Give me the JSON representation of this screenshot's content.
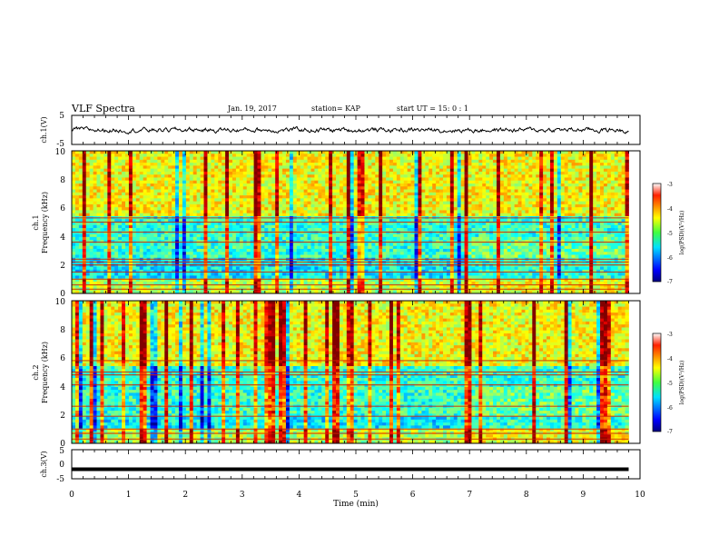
{
  "header": {
    "title": "VLF Spectra",
    "date": "Jan. 19, 2017",
    "station": "station= KAP",
    "start": "start  UT =   15: 0  : 1"
  },
  "chart_data": [
    {
      "type": "line",
      "name": "ch1-waveform",
      "ylabel": "ch.1(V)",
      "ylim": [
        -5,
        5
      ],
      "yticks": [
        "5",
        "-5"
      ],
      "xlim": [
        0,
        10
      ],
      "description_values": "noisy signal oscillating roughly between -1.3 and +1.3 V over 0-9.8 min"
    },
    {
      "type": "heatmap",
      "name": "ch1-spectrogram",
      "ylabel": "ch.1\nFrequency  (kHz)",
      "ylim": [
        0,
        10
      ],
      "yticks": [
        "0",
        "2",
        "4",
        "6",
        "8",
        "10"
      ],
      "xlim": [
        0,
        10
      ],
      "data_xmax": 9.8,
      "colorbar": {
        "label": "log(PSD)(V²/Hz)",
        "range": [
          -7,
          -3
        ],
        "ticks": [
          "-3",
          "-4",
          "-5",
          "-6",
          "-7"
        ]
      },
      "bands_khz": [
        0.3,
        0.6,
        1.0,
        1.5,
        2.0,
        2.2,
        2.4,
        3.6,
        4.3,
        5.0,
        5.3
      ]
    },
    {
      "type": "heatmap",
      "name": "ch2-spectrogram",
      "ylabel": "ch.2\nFrequency  (kHz)",
      "ylim": [
        0,
        10
      ],
      "yticks": [
        "0",
        "2",
        "4",
        "6",
        "8",
        "10"
      ],
      "xlim": [
        0,
        10
      ],
      "data_xmax": 9.8,
      "colorbar": {
        "label": "log(PSD)(V²/Hz)",
        "range": [
          -7,
          -3
        ],
        "ticks": [
          "-3",
          "-4",
          "-5",
          "-6",
          "-7"
        ]
      },
      "bands_khz": [
        0.3,
        0.7,
        1.0,
        1.9,
        2.6,
        4.1,
        4.8,
        5.0,
        5.8
      ]
    },
    {
      "type": "line",
      "name": "ch3-waveform",
      "ylabel": "ch.3(V)",
      "ylim": [
        -5,
        5
      ],
      "yticks": [
        "5",
        "0",
        "-5"
      ],
      "x": [
        0,
        9.8
      ],
      "y": [
        -1.7,
        -1.7
      ],
      "xlim": [
        0,
        10
      ],
      "xlabel": "Time  (min)",
      "xticks": [
        "0",
        "1",
        "2",
        "3",
        "4",
        "5",
        "6",
        "7",
        "8",
        "9",
        "10"
      ]
    }
  ]
}
